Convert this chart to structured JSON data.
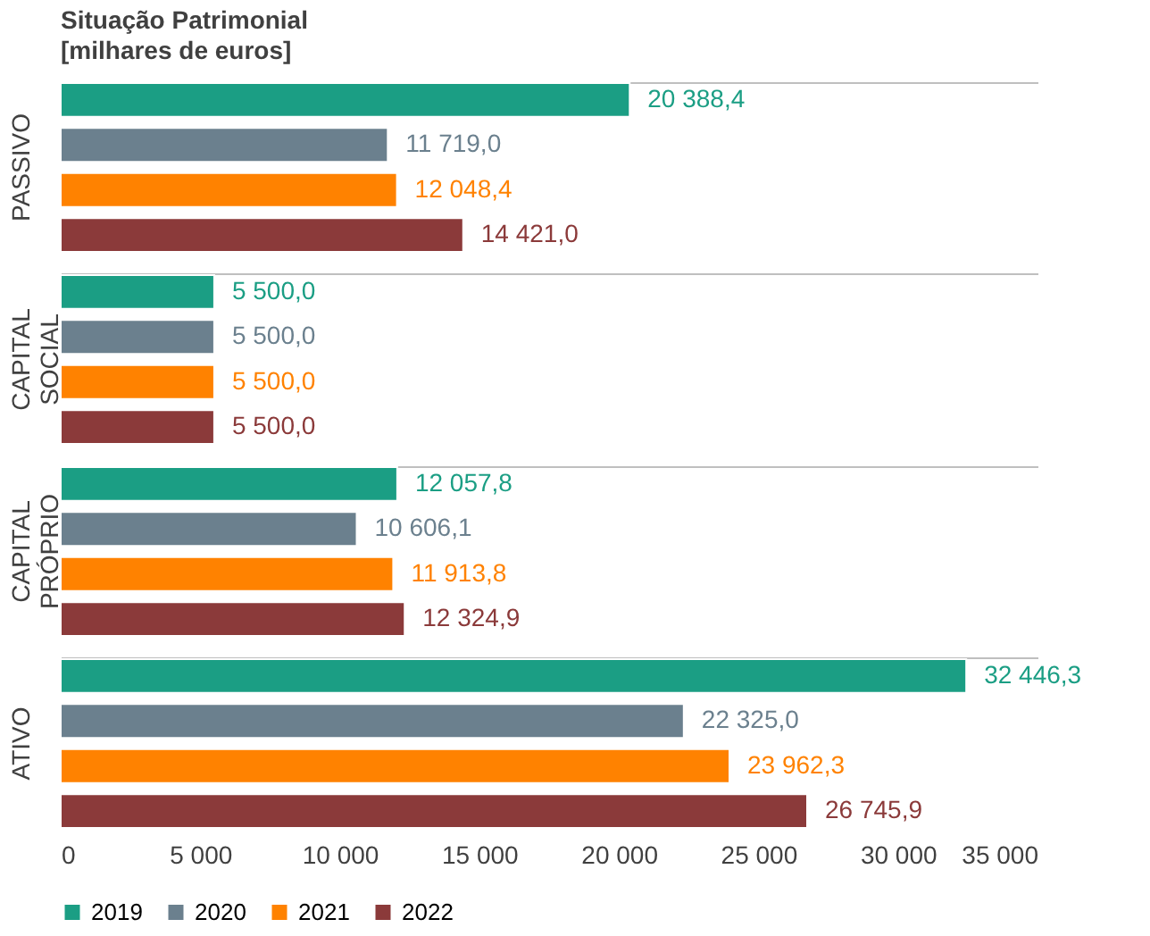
{
  "chart_data": {
    "type": "bar",
    "orientation": "horizontal",
    "title": "Situação Patrimonial",
    "subtitle": "[milhares de euros]",
    "categories": [
      "PASSIVO",
      "CAPITAL SOCIAL",
      "CAPITAL PRÓPRIO",
      "ATIVO"
    ],
    "series": [
      {
        "name": "2019",
        "color": "#1b9e84",
        "values": [
          20388.4,
          5500.0,
          12057.8,
          32446.3
        ],
        "value_labels": [
          "20 388,4",
          "5 500,0",
          "12 057,8",
          "32 446,3"
        ]
      },
      {
        "name": "2020",
        "color": "#6b808e",
        "values": [
          11719.0,
          5500.0,
          10606.1,
          22325.0
        ],
        "value_labels": [
          "11 719,0",
          "5 500,0",
          "10 606,1",
          "22 325,0"
        ]
      },
      {
        "name": "2021",
        "color": "#ff8200",
        "values": [
          12048.4,
          5500.0,
          11913.8,
          23962.3
        ],
        "value_labels": [
          "12 048,4",
          "5 500,0",
          "11 913,8",
          "23 962,3"
        ]
      },
      {
        "name": "2022",
        "color": "#8b3a3a",
        "values": [
          14421.0,
          5500.0,
          12324.9,
          26745.9
        ],
        "value_labels": [
          "14 421,0",
          "5 500,0",
          "12 324,9",
          "26 745,9"
        ]
      }
    ],
    "xlim": [
      0,
      35000
    ],
    "xticks": [
      0,
      {
        "value": 5000,
        "label": "5 000"
      },
      {
        "value": 10000,
        "label": "10 000"
      },
      {
        "value": 15000,
        "label": "15 000"
      },
      {
        "value": 20000,
        "label": "20 000"
      },
      {
        "value": 25000,
        "label": "25 000"
      },
      {
        "value": 30000,
        "label": "30 000"
      },
      {
        "value": 35000,
        "label": "35 000"
      }
    ],
    "grid": "y",
    "legend": "bottom"
  }
}
